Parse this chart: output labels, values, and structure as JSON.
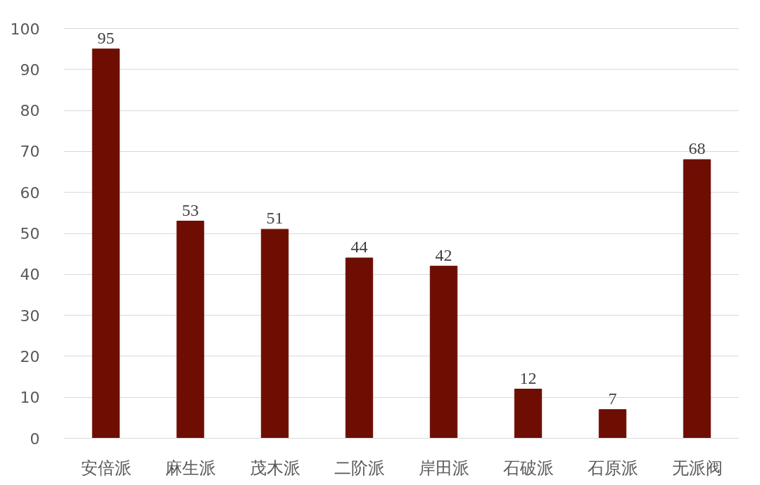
{
  "chart_data": {
    "type": "bar",
    "categories": [
      "安倍派",
      "麻生派",
      "茂木派",
      "二阶派",
      "岸田派",
      "石破派",
      "石原派",
      "无派阀"
    ],
    "values": [
      95,
      53,
      51,
      44,
      42,
      12,
      7,
      68
    ],
    "color": "#6e0e02",
    "ylim": [
      0,
      100
    ],
    "yticks": [
      0,
      10,
      20,
      30,
      40,
      50,
      60,
      70,
      80,
      90,
      100
    ],
    "grid": "y",
    "data_labels": true
  }
}
